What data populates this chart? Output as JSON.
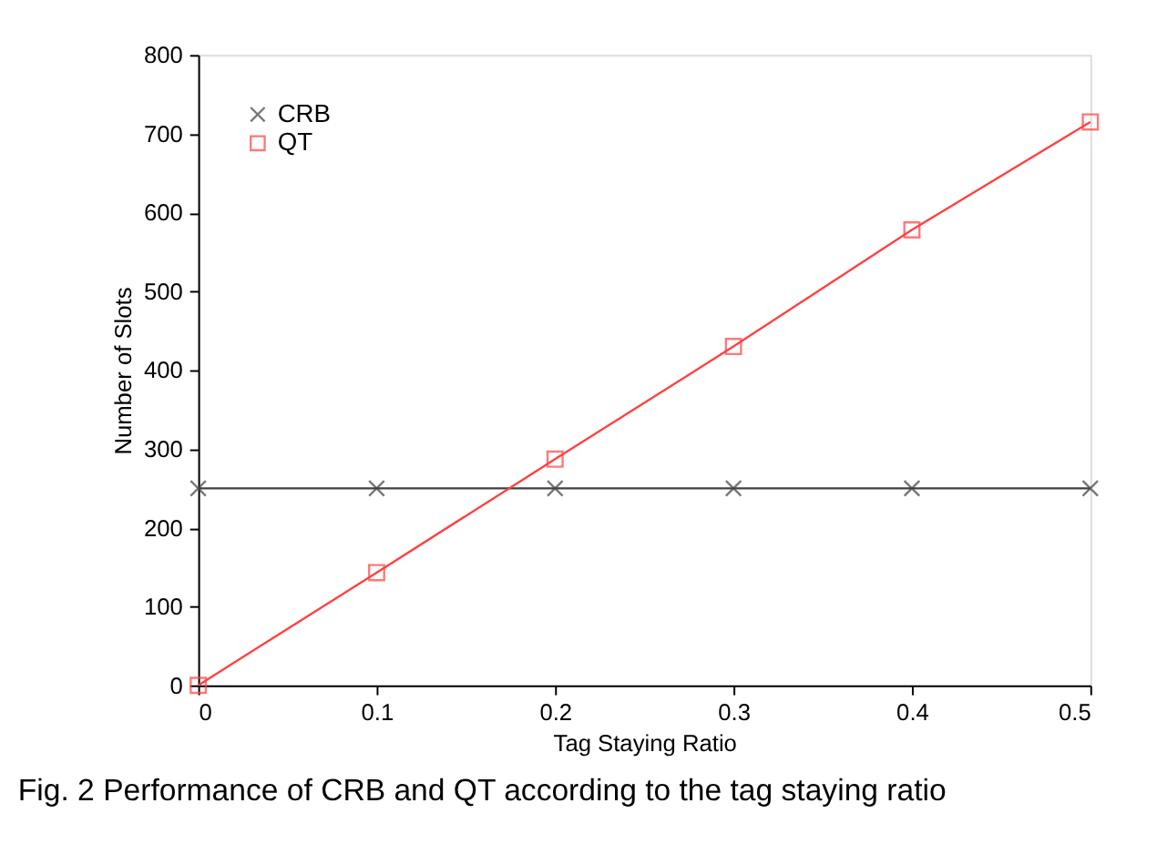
{
  "chart_data": {
    "type": "line",
    "xlabel": "Tag Staying Ratio",
    "ylabel": "Number of Slots",
    "x": [
      0,
      0.1,
      0.2,
      0.3,
      0.4,
      0.5
    ],
    "series": [
      {
        "name": "CRB",
        "color": "#404040",
        "marker": "cross",
        "values": [
          250,
          250,
          250,
          250,
          250,
          250
        ]
      },
      {
        "name": "QT",
        "color": "#ff4040",
        "marker": "square",
        "values": [
          0,
          143,
          287,
          430,
          578,
          715
        ]
      }
    ],
    "xlim": [
      0,
      0.5
    ],
    "xticks": [
      0,
      0.1,
      0.2,
      0.3,
      0.4,
      0.5
    ],
    "ylim": [
      0,
      800
    ],
    "yticks": [
      0,
      100,
      200,
      300,
      400,
      500,
      600,
      700,
      800
    ],
    "grid": false,
    "legend": "top left",
    "annotations": [
      "Fig. 2 Performance of CRB and QT according to the tag staying ratio"
    ]
  }
}
